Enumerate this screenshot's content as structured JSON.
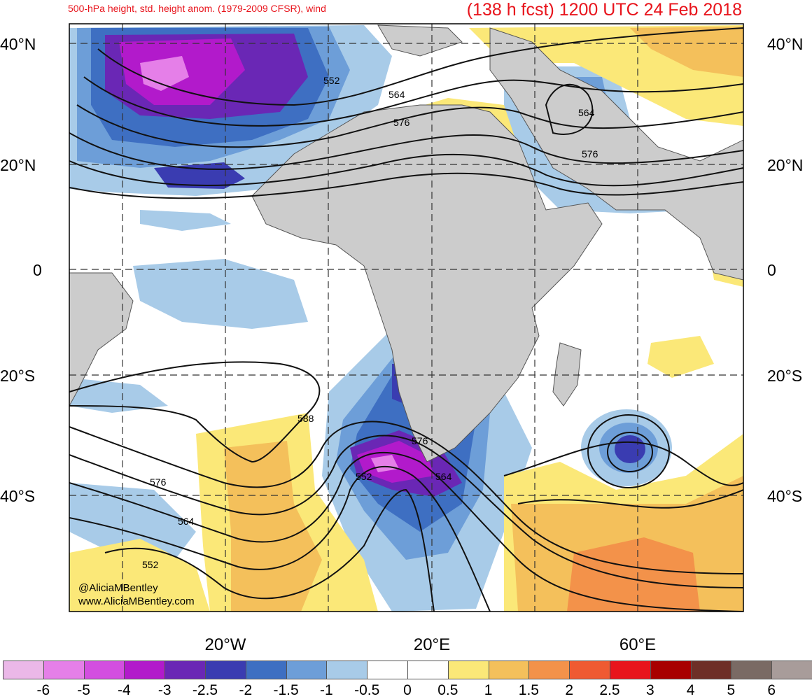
{
  "header": {
    "title_left": "500-hPa height, std. height anom. (1979-2009 CFSR), wind",
    "title_right": "(138 h fcst) 1200 UTC 24 Feb 2018"
  },
  "lat_labels": [
    "40°N",
    "20°N",
    "0",
    "20°S",
    "40°S"
  ],
  "lon_labels": [
    "20°W",
    "20°E",
    "60°E"
  ],
  "contour_labels": [
    "552",
    "564",
    "576",
    "564",
    "576",
    "588",
    "576",
    "564",
    "552",
    "576",
    "552",
    "564"
  ],
  "credits": {
    "twitter": "@AliciaMBentley",
    "website": "www.AliciaMBentley.com"
  },
  "colorbar": {
    "colors": [
      "#ebb8e8",
      "#e57fe8",
      "#d34ee0",
      "#b21acb",
      "#6a27b5",
      "#3a3cb1",
      "#3e6fc2",
      "#6d9ed8",
      "#a8cbe8",
      "#ffffff",
      "#ffffff",
      "#fbe878",
      "#f4c05b",
      "#f3924a",
      "#ef5a32",
      "#e8141c",
      "#a80000",
      "#6e2f27",
      "#7a6a64",
      "#a89c9a"
    ],
    "labels": [
      "-6",
      "-5",
      "-4",
      "-3",
      "-2.5",
      "-2",
      "-1.5",
      "-1",
      "-0.5",
      "0",
      "0.5",
      "1",
      "1.5",
      "2",
      "2.5",
      "3",
      "4",
      "5",
      "6"
    ]
  }
}
